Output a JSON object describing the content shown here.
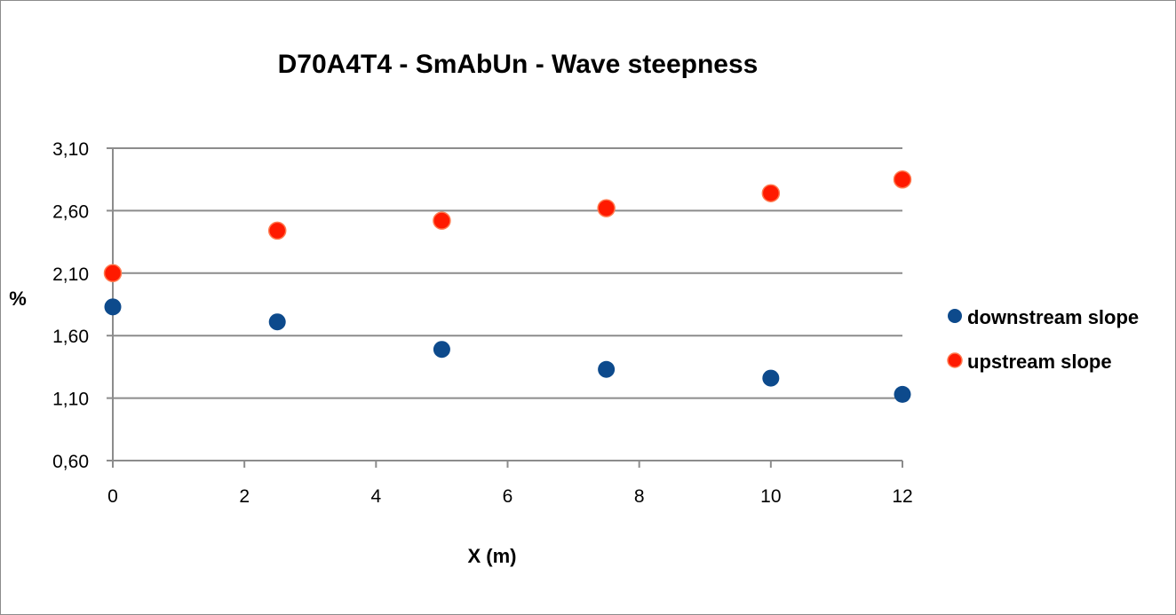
{
  "chart_data": {
    "type": "scatter",
    "title": "D70A4T4  - SmAbUn - Wave steepness",
    "xlabel": "X (m)",
    "ylabel": "%",
    "xlim": [
      0,
      12
    ],
    "ylim": [
      0.6,
      3.1
    ],
    "x_ticks": [
      "0",
      "2",
      "4",
      "6",
      "8",
      "10",
      "12"
    ],
    "x_tick_values": [
      0,
      2,
      4,
      6,
      8,
      10,
      12
    ],
    "y_ticks": [
      "0,60",
      "1,10",
      "1,60",
      "2,10",
      "2,60",
      "3,10"
    ],
    "y_tick_values": [
      0.6,
      1.1,
      1.6,
      2.1,
      2.6,
      3.1
    ],
    "grid": "horizontal",
    "legend_position": "right",
    "series": [
      {
        "name": "downstream slope",
        "color": "#0d4a8c",
        "x": [
          0,
          2.5,
          5,
          7.5,
          10,
          12
        ],
        "y": [
          1.83,
          1.71,
          1.49,
          1.33,
          1.26,
          1.13
        ]
      },
      {
        "name": "upstream slope",
        "color": "#ff1a00",
        "x": [
          0,
          2.5,
          5,
          7.5,
          10,
          12
        ],
        "y": [
          2.1,
          2.44,
          2.52,
          2.62,
          2.74,
          2.85
        ]
      }
    ]
  }
}
